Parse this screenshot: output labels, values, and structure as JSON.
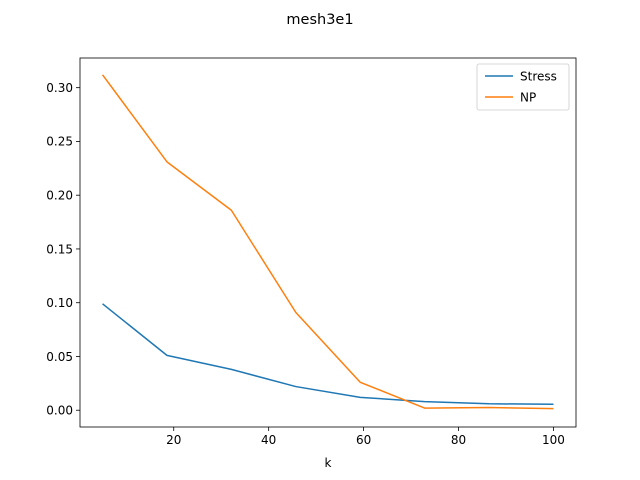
{
  "chart_data": {
    "type": "line",
    "title": "mesh3e1",
    "xlabel": "k",
    "ylabel": "",
    "xlim": [
      0.25,
      104.75
    ],
    "ylim": [
      -0.0156,
      0.3276
    ],
    "xticks": [
      20,
      40,
      60,
      80,
      100
    ],
    "yticks": [
      0.0,
      0.05,
      0.1,
      0.15,
      0.2,
      0.25,
      0.3
    ],
    "ytick_labels": [
      "0.00",
      "0.05",
      "0.10",
      "0.15",
      "0.20",
      "0.25",
      "0.30"
    ],
    "grid": false,
    "legend": "top-right",
    "x": [
      5,
      18.57,
      32.14,
      45.71,
      59.29,
      72.86,
      86.43,
      100
    ],
    "series": [
      {
        "name": "Stress",
        "color": "#1f77b4",
        "values": [
          0.099,
          0.051,
          0.038,
          0.022,
          0.012,
          0.008,
          0.006,
          0.0055
        ]
      },
      {
        "name": "NP",
        "color": "#ff7f0e",
        "values": [
          0.312,
          0.231,
          0.186,
          0.091,
          0.026,
          0.002,
          0.0025,
          0.0015
        ]
      }
    ]
  }
}
